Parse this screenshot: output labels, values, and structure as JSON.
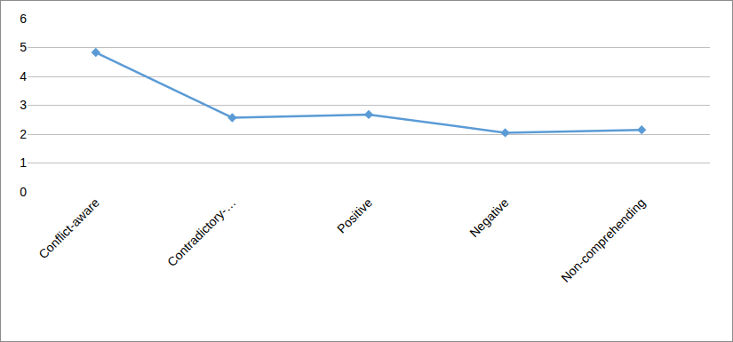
{
  "chart_data": {
    "type": "line",
    "categories": [
      "Conflict-aware",
      "Contradictory-…",
      "Positive",
      "Negative",
      "Non-comprehending"
    ],
    "values": [
      4.83,
      2.57,
      2.68,
      2.05,
      2.15
    ],
    "color": "#5b9bd5",
    "marker": "diamond",
    "ylim": [
      0,
      6
    ],
    "yticks": [
      0,
      1,
      2,
      3,
      4,
      5,
      6
    ],
    "grid": true
  }
}
